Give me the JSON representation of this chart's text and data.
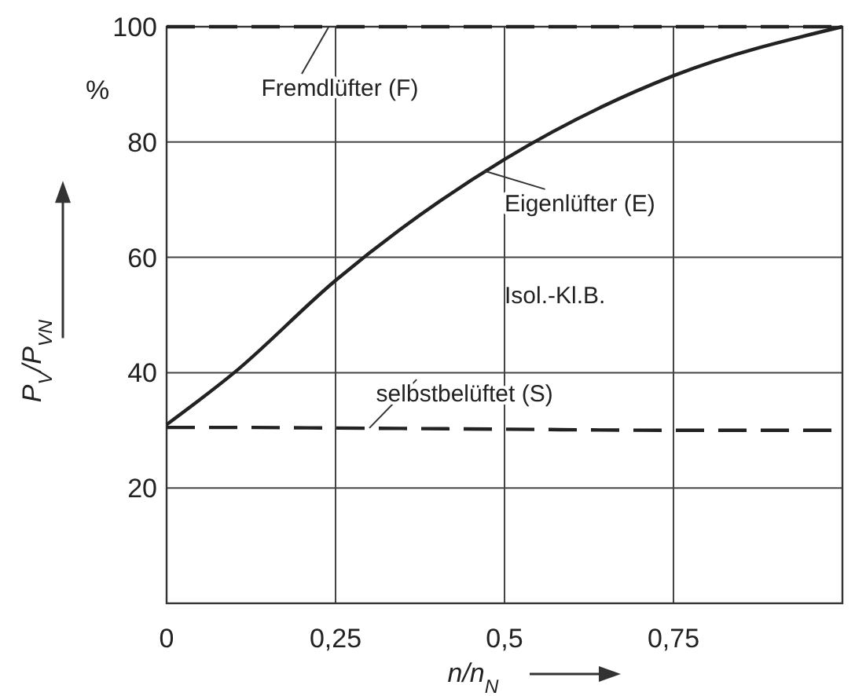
{
  "chart_data": {
    "type": "line",
    "x": [
      0,
      0.1,
      0.25,
      0.5,
      0.75,
      1
    ],
    "series": [
      {
        "name": "Fremdlüfter (F)",
        "color": "#222222",
        "line_style": "dashed",
        "values": [
          100,
          100,
          100,
          100,
          100,
          100
        ]
      },
      {
        "name": "Eigenlüfter (E)",
        "color": "#222222",
        "line_style": "solid",
        "values": [
          31,
          40,
          56,
          77,
          91.5,
          100
        ]
      },
      {
        "name": "selbstbelüftet (S)",
        "color": "#222222",
        "line_style": "dashed",
        "values": [
          30.5,
          30.5,
          30.4,
          30.2,
          30,
          30
        ]
      }
    ],
    "xlabel": "n/n$_{N}$",
    "ylabel": "P$_{V}$/P$_{VN}$",
    "xlim": [
      0,
      1
    ],
    "ylim": [
      0,
      100
    ],
    "xticks": [
      0,
      {
        "value": 0.25,
        "label": "0,25"
      },
      {
        "value": 0.5,
        "label": "0,5"
      },
      {
        "value": 0.75,
        "label": "0,75"
      }
    ],
    "yticks": [
      20,
      40,
      60,
      80,
      100
    ],
    "grid": true,
    "marker": "none",
    "annotations": [
      "%",
      "Isol.-Kl.B."
    ]
  }
}
